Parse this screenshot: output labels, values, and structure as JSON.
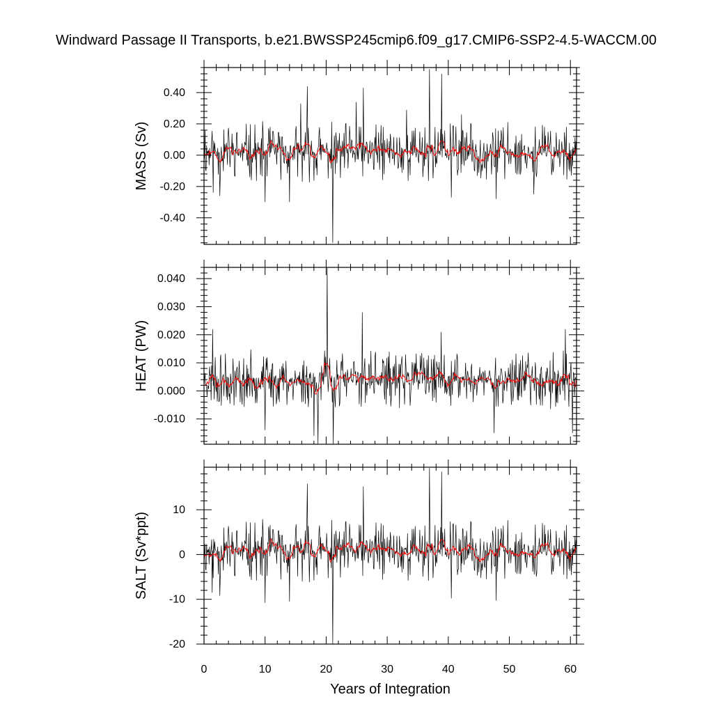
{
  "title": "Windward Passage II Transports, b.e21.BWSSP245cmip6.f09_g17.CMIP6-SSP2-4.5-WACCM.00",
  "xlabel": "Years of Integration",
  "colors": {
    "raw": "#000000",
    "smooth": "#ff0000"
  },
  "chart_data": [
    {
      "type": "line",
      "panel": "mass",
      "ylabel": "MASS (Sv)",
      "xlim": [
        0,
        61
      ],
      "ylim": [
        -0.57,
        0.56
      ],
      "xticks": [
        0,
        10,
        20,
        30,
        40,
        50,
        60
      ],
      "yticks": [
        0.4,
        0.2,
        0.0,
        -0.2,
        -0.4
      ],
      "ytick_labels": [
        "0.40",
        "0.20",
        "0.00",
        "-0.20",
        "-0.40"
      ],
      "series": [
        {
          "role": "monthly",
          "style": "black-thin",
          "baseline": 0.02,
          "noise": 0.075,
          "seed": 11
        },
        {
          "role": "smoothed",
          "style": "red-thin"
        }
      ],
      "extremes": [
        [
          0.15,
          0.16
        ],
        [
          1.5,
          -0.24
        ],
        [
          2.6,
          -0.26
        ],
        [
          10.0,
          -0.3
        ],
        [
          14.0,
          -0.3
        ],
        [
          15.8,
          0.33
        ],
        [
          16.9,
          0.44
        ],
        [
          20.1,
          0.08
        ],
        [
          21.1,
          -0.56
        ],
        [
          21.5,
          -0.12
        ],
        [
          24.9,
          0.34
        ],
        [
          26.1,
          0.43
        ],
        [
          33.2,
          0.29
        ],
        [
          36.9,
          0.55
        ],
        [
          38.9,
          0.52
        ],
        [
          40.5,
          -0.27
        ],
        [
          42.2,
          0.26
        ],
        [
          47.8,
          -0.28
        ],
        [
          54.0,
          -0.25
        ]
      ]
    },
    {
      "type": "line",
      "panel": "heat",
      "ylabel": "HEAT (PW)",
      "xlim": [
        0,
        61
      ],
      "ylim": [
        -0.019,
        0.044
      ],
      "xticks": [
        0,
        10,
        20,
        30,
        40,
        50,
        60
      ],
      "yticks": [
        0.04,
        0.03,
        0.02,
        0.01,
        0.0,
        -0.01
      ],
      "ytick_labels": [
        "0.040",
        "0.030",
        "0.020",
        "0.010",
        "0.000",
        "-0.010"
      ],
      "series": [
        {
          "role": "monthly",
          "style": "black-thin",
          "baseline": 0.004,
          "noise": 0.0042,
          "seed": 23
        },
        {
          "role": "smoothed",
          "style": "red-thin"
        }
      ],
      "extremes": [
        [
          1.4,
          0.022
        ],
        [
          10.0,
          -0.014
        ],
        [
          18.0,
          -0.016
        ],
        [
          18.7,
          -0.019
        ],
        [
          20.2,
          0.044
        ],
        [
          21.2,
          -0.019
        ],
        [
          25.9,
          0.028
        ],
        [
          38.8,
          0.021
        ],
        [
          47.5,
          -0.015
        ],
        [
          59.2,
          0.022
        ],
        [
          60.3,
          -0.015
        ]
      ]
    },
    {
      "type": "line",
      "panel": "salt",
      "ylabel": "SALT (Sv*ppt)",
      "xlim": [
        0,
        61
      ],
      "ylim": [
        -20,
        19.5
      ],
      "xticks": [
        0,
        10,
        20,
        30,
        40,
        50,
        60
      ],
      "yticks": [
        10,
        0,
        -10,
        -20
      ],
      "ytick_labels": [
        "10",
        "0",
        "-10",
        "-20"
      ],
      "series": [
        {
          "role": "monthly",
          "style": "black-thin",
          "baseline": 0.8,
          "noise": 2.7,
          "seed": 11
        },
        {
          "role": "smoothed",
          "style": "red-thin"
        }
      ],
      "extremes": [
        [
          1.3,
          -8.5
        ],
        [
          2.6,
          -9.2
        ],
        [
          10.0,
          -10.8
        ],
        [
          14.0,
          -10.5
        ],
        [
          16.9,
          15.8
        ],
        [
          21.1,
          -20.0
        ],
        [
          26.1,
          15.2
        ],
        [
          36.9,
          19.3
        ],
        [
          38.9,
          18.5
        ],
        [
          40.5,
          -9.8
        ],
        [
          47.8,
          -10.3
        ]
      ]
    }
  ],
  "xtick_labels": [
    "0",
    "10",
    "20",
    "30",
    "40",
    "50",
    "60"
  ]
}
